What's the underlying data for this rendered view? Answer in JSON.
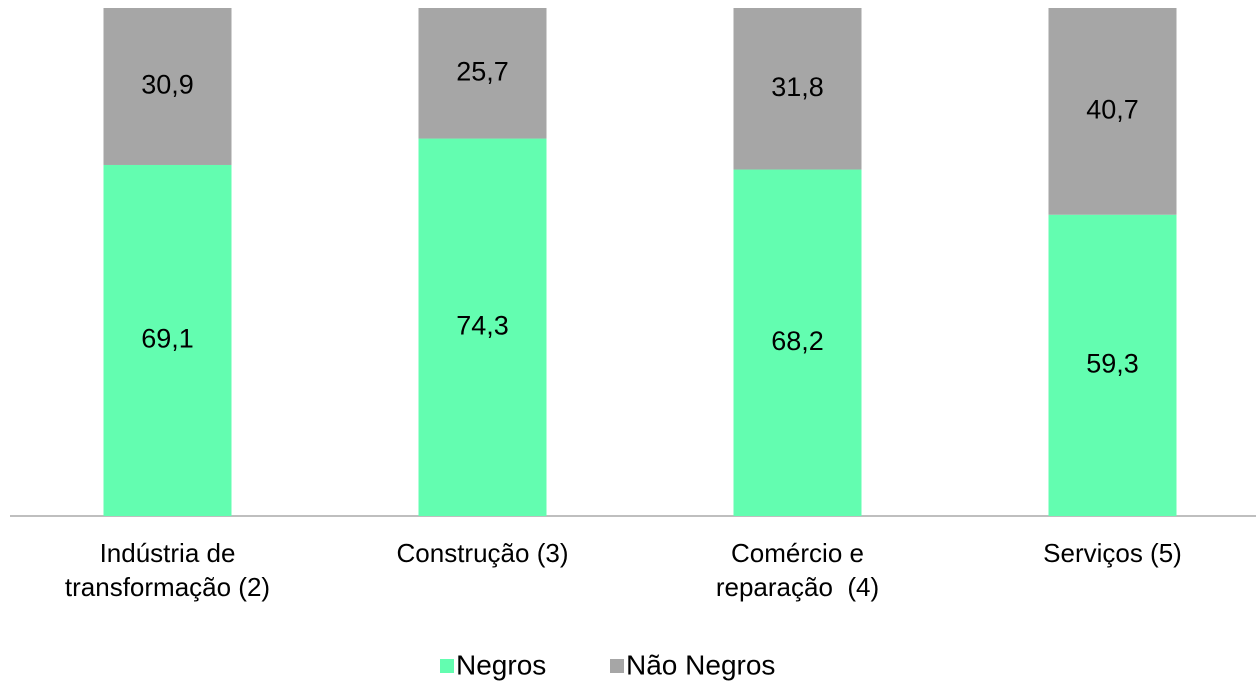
{
  "chart_data": {
    "type": "stacked-bar",
    "categories": [
      "Indústria de\ntransformação (2)",
      "Construção (3)",
      "Comércio e\nreparação  (4)",
      "Serviços (5)"
    ],
    "series": [
      {
        "name": "Negros",
        "color": "#63fdb0",
        "values": [
          69.1,
          74.3,
          68.2,
          59.3
        ],
        "value_labels": [
          "69,1",
          "74,3",
          "68,2",
          "59,3"
        ]
      },
      {
        "name": "Não Negros",
        "color": "#a6a6a6",
        "values": [
          30.9,
          25.7,
          31.8,
          40.7
        ],
        "value_labels": [
          "30,9",
          "25,7",
          "31,8",
          "40,7"
        ]
      }
    ],
    "ylim": [
      0,
      100
    ],
    "legend": "bottom"
  }
}
